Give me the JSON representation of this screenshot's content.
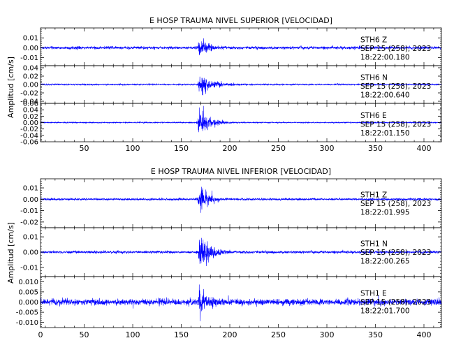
{
  "colors": {
    "trace": "#0000ff",
    "axis": "#000000",
    "background": "#ffffff"
  },
  "chart_data": [
    {
      "type": "line",
      "title": "E HOSP TRAUMA NIVEL SUPERIOR [VELOCIDAD]",
      "ylabel": "Amplitud [cm/s]",
      "xlim": [
        5,
        418
      ],
      "xticks": [
        50,
        100,
        150,
        200,
        250,
        300,
        350,
        400
      ],
      "grid": false,
      "traces": [
        {
          "station": "STH6",
          "component": "Z",
          "date": "SEP 15 (258), 2023",
          "time": "18:22:00.180",
          "ylim": [
            -0.018,
            0.02
          ],
          "yticks": [
            0.01,
            0.0,
            -0.01
          ],
          "ytick_labels": [
            "0.01",
            "0.00",
            "-0.01"
          ],
          "noise_amp": 0.0012,
          "event_onset": 167,
          "event_peak": 0.012,
          "event_decay": 10
        },
        {
          "station": "STH6",
          "component": "N",
          "date": "SEP 15 (258), 2023",
          "time": "18:22:00.640",
          "ylim": [
            -0.045,
            0.045
          ],
          "yticks": [
            0.04,
            0.02,
            0.0,
            -0.02,
            -0.04
          ],
          "ytick_labels": [
            "0.04",
            "0.02",
            "0.00",
            "-0.02",
            "-0.04"
          ],
          "noise_amp": 0.0015,
          "event_onset": 167,
          "event_peak": 0.028,
          "event_decay": 14
        },
        {
          "station": "STH6",
          "component": "E",
          "date": "SEP 15 (258), 2023",
          "time": "18:22:01.150",
          "ylim": [
            -0.06,
            0.06
          ],
          "yticks": [
            0.06,
            0.04,
            0.02,
            0.0,
            -0.02,
            -0.04,
            -0.06
          ],
          "ytick_labels": [
            "0.06",
            "0.04",
            "0.02",
            "0.00",
            "-0.02",
            "-0.04",
            "-0.06"
          ],
          "noise_amp": 0.0015,
          "event_onset": 167,
          "event_peak": 0.045,
          "event_decay": 12
        }
      ]
    },
    {
      "type": "line",
      "title": "E HOSP TRAUMA NIVEL INFERIOR [VELOCIDAD]",
      "ylabel": "Amplitud [cm/s]",
      "xlim": [
        5,
        418
      ],
      "xticks": [
        0,
        50,
        100,
        150,
        200,
        250,
        300,
        350,
        400
      ],
      "grid": false,
      "traces": [
        {
          "station": "STH1",
          "component": "Z",
          "date": "SEP 15 (258), 2023",
          "time": "18:22:01.995",
          "ylim": [
            -0.025,
            0.018
          ],
          "yticks": [
            0.01,
            0.0,
            -0.01,
            -0.02
          ],
          "ytick_labels": [
            "0.01",
            "0.00",
            "-0.01",
            "-0.02"
          ],
          "noise_amp": 0.0008,
          "event_onset": 167,
          "event_peak": 0.016,
          "event_decay": 9
        },
        {
          "station": "STH1",
          "component": "N",
          "date": "SEP 15 (258), 2023",
          "time": "18:22:00.265",
          "ylim": [
            -0.016,
            0.016
          ],
          "yticks": [
            0.01,
            0.0,
            -0.01
          ],
          "ytick_labels": [
            "0.01",
            "0.00",
            "-0.01"
          ],
          "noise_amp": 0.0007,
          "event_onset": 167,
          "event_peak": 0.014,
          "event_decay": 11
        },
        {
          "station": "STH1",
          "component": "E",
          "date": "SEP 15 (258), 2023",
          "time": "18:22:01.700",
          "ylim": [
            -0.0125,
            0.0125
          ],
          "yticks": [
            0.01,
            0.005,
            0.0,
            -0.005,
            -0.01
          ],
          "ytick_labels": [
            "0.010",
            "0.005",
            "0.000",
            "-0.005",
            "-0.010"
          ],
          "noise_amp": 0.0013,
          "event_onset": 167,
          "event_peak": 0.0105,
          "event_decay": 9
        }
      ]
    }
  ]
}
